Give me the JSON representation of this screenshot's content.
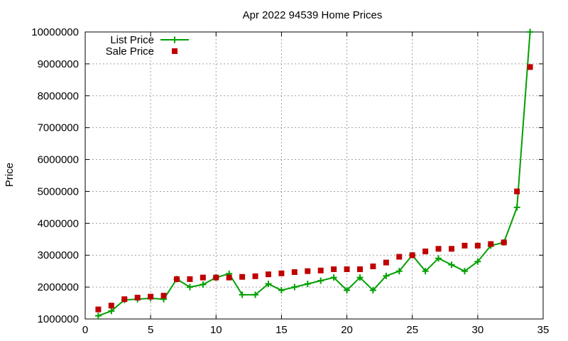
{
  "chart_data": {
    "type": "line",
    "title": "Apr 2022 94539 Home Prices",
    "xlabel": "",
    "ylabel": "Price",
    "xlim": [
      0,
      35
    ],
    "ylim": [
      1000000,
      10000000
    ],
    "xticks": [
      0,
      5,
      10,
      15,
      20,
      25,
      30,
      35
    ],
    "xtick_labels": [
      "0",
      "5",
      "10",
      "15",
      "20",
      "25",
      "30",
      "35"
    ],
    "yticks": [
      1000000,
      2000000,
      3000000,
      4000000,
      5000000,
      6000000,
      7000000,
      8000000,
      9000000,
      10000000
    ],
    "ytick_labels": [
      "1000000",
      "2000000",
      "3000000",
      "4000000",
      "5000000",
      "6000000",
      "7000000",
      "8000000",
      "9000000",
      "10000000"
    ],
    "grid": true,
    "legend_position": "top-left",
    "x": [
      1,
      2,
      3,
      4,
      5,
      6,
      7,
      8,
      9,
      10,
      11,
      12,
      13,
      14,
      15,
      16,
      17,
      18,
      19,
      20,
      21,
      22,
      23,
      24,
      25,
      26,
      27,
      28,
      29,
      30,
      31,
      32,
      33,
      34
    ],
    "series": [
      {
        "name": "List Price",
        "style": "linespoints",
        "color": "#00a000",
        "values": [
          1100000,
          1250000,
          1600000,
          1620000,
          1650000,
          1620000,
          2250000,
          2000000,
          2080000,
          2300000,
          2420000,
          1760000,
          1760000,
          2100000,
          1900000,
          2000000,
          2100000,
          2200000,
          2300000,
          1900000,
          2300000,
          1900000,
          2350000,
          2500000,
          3000000,
          2500000,
          2900000,
          2700000,
          2500000,
          2800000,
          3300000,
          3400000,
          4500000,
          10000000
        ]
      },
      {
        "name": "Sale Price",
        "style": "points",
        "color": "#c00000",
        "values": [
          1300000,
          1420000,
          1620000,
          1670000,
          1700000,
          1730000,
          2250000,
          2250000,
          2300000,
          2300000,
          2300000,
          2320000,
          2340000,
          2400000,
          2430000,
          2470000,
          2500000,
          2520000,
          2560000,
          2560000,
          2560000,
          2650000,
          2770000,
          2950000,
          3000000,
          3120000,
          3200000,
          3200000,
          3300000,
          3300000,
          3350000,
          3400000,
          5000000,
          8900000
        ]
      }
    ]
  }
}
